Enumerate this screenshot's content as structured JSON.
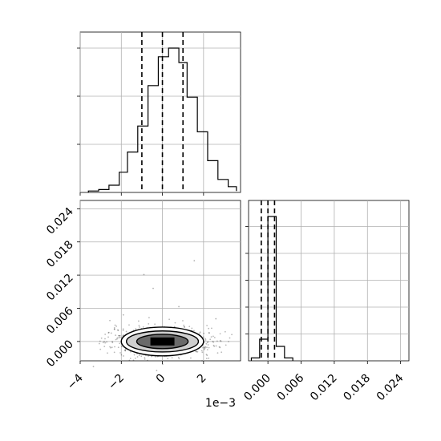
{
  "chart_data": [
    {
      "panel": "top-left",
      "type": "histogram",
      "x_bins": [
        -3.6,
        -3.1,
        -2.6,
        -2.1,
        -1.7,
        -1.2,
        -0.7,
        -0.2,
        0.3,
        0.8,
        1.2,
        1.7,
        2.2,
        2.7,
        3.2,
        3.6
      ],
      "counts": [
        0.01,
        0.02,
        0.05,
        0.14,
        0.28,
        0.46,
        0.74,
        0.94,
        1.0,
        0.9,
        0.66,
        0.42,
        0.22,
        0.09,
        0.04,
        0.01
      ],
      "quantile_lines": [
        -1.0,
        0.0,
        1.0
      ],
      "xlim": [
        -4.0,
        3.8
      ],
      "x_ticks": [
        -4,
        -2,
        0,
        2
      ],
      "y_tick_count": 3,
      "grid": true
    },
    {
      "panel": "bottom-left",
      "type": "scatter-density",
      "x_scale": "1e-3",
      "xlim": [
        -4.0,
        3.8
      ],
      "ylim": [
        -0.0035,
        0.0255
      ],
      "x_ticks": [
        -4,
        -2,
        0,
        2
      ],
      "x_tick_labels": [
        "−4",
        "−2",
        "0",
        "2"
      ],
      "x_offset_label": "1e−3",
      "y_ticks": [
        0.0,
        0.006,
        0.012,
        0.018,
        0.024
      ],
      "y_tick_labels": [
        "0.000",
        "0.006",
        "0.012",
        "0.018",
        "0.024"
      ],
      "center": [
        0.0,
        0.0
      ],
      "contours": [
        {
          "level": "inner",
          "rx": 1.25,
          "ry": 0.0013
        },
        {
          "level": "middle",
          "rx": 1.75,
          "ry": 0.0019
        },
        {
          "level": "outer",
          "rx": 2.0,
          "ry": 0.0026
        }
      ],
      "outliers": [
        {
          "x": -0.9,
          "y": 0.0121
        },
        {
          "x": -0.45,
          "y": 0.0096
        },
        {
          "x": 1.55,
          "y": 0.0146
        },
        {
          "x": 0.8,
          "y": 0.0063
        },
        {
          "x": -1.9,
          "y": 0.0048
        },
        {
          "x": 2.6,
          "y": 0.0041
        }
      ],
      "grid": true
    },
    {
      "panel": "bottom-right",
      "type": "histogram",
      "x_bins": [
        -0.0015,
        0.0,
        0.0015,
        0.003
      ],
      "counts": [
        0.15,
        1.0,
        0.1
      ],
      "outer_bins": [
        {
          "x": -0.003,
          "count": 0.02
        },
        {
          "x": 0.003,
          "count": 0.02
        }
      ],
      "quantile_lines": [
        -0.0012,
        0.0,
        0.0012
      ],
      "xlim": [
        -0.0035,
        0.0255
      ],
      "x_ticks": [
        0.0,
        0.006,
        0.012,
        0.018,
        0.024
      ],
      "x_tick_labels": [
        "0.000",
        "0.006",
        "0.012",
        "0.018",
        "0.024"
      ],
      "y_tick_count": 5,
      "grid": true
    }
  ]
}
